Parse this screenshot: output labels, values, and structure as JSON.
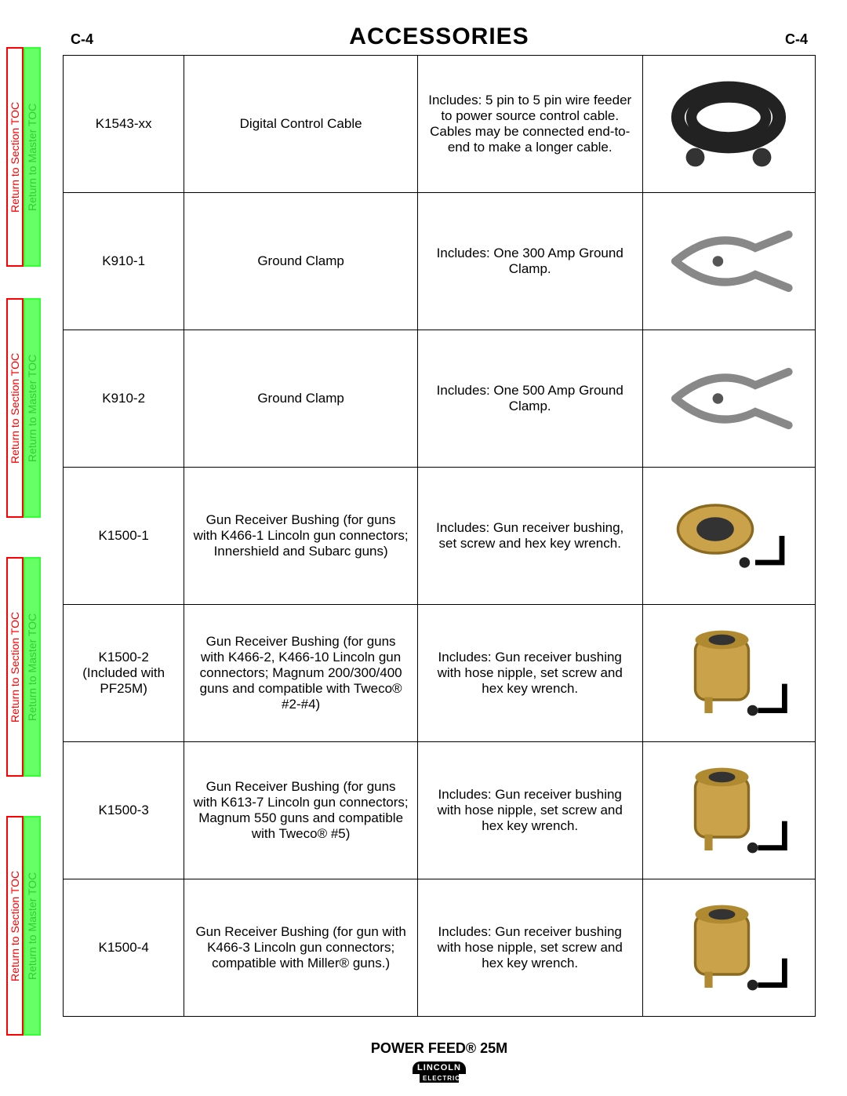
{
  "page_label_left": "C-4",
  "page_title": "ACCESSORIES",
  "page_label_right": "C-4",
  "side_tab_red": "Return to Section TOC",
  "side_tab_green": "Return to Master TOC",
  "footer_product": "POWER FEED® 25M",
  "logo_top": "LINCOLN",
  "logo_bottom": "ELECTRIC",
  "rows": [
    {
      "part": "K1543-xx",
      "name": "Digital Control Cable",
      "desc": "Includes: 5 pin to 5 pin wire feeder to power source control cable.  Cables may be connected end-to-end to make a longer cable.",
      "img": "cable"
    },
    {
      "part": "K910-1",
      "name": "Ground Clamp",
      "desc": "Includes:  One 300 Amp Ground Clamp.",
      "img": "clamp"
    },
    {
      "part": "K910-2",
      "name": "Ground Clamp",
      "desc": "Includes:  One 500 Amp Ground Clamp.",
      "img": "clamp"
    },
    {
      "part": "K1500-1",
      "name": "Gun Receiver Bushing (for guns with K466-1 Lincoln gun connectors; Innershield and Subarc guns)",
      "desc": "Includes:  Gun receiver bushing, set screw and hex key wrench.",
      "img": "bushing1"
    },
    {
      "part": "K1500-2 (Included with PF25M)",
      "name": "Gun Receiver Bushing (for guns with K466-2, K466-10 Lincoln gun connectors; Magnum 200/300/400 guns and compatible with Tweco® #2-#4)",
      "desc": "Includes: Gun receiver bushing with hose nipple, set screw and hex key wrench.",
      "img": "bushing2"
    },
    {
      "part": "K1500-3",
      "name": "Gun Receiver Bushing (for guns with K613-7 Lincoln gun connectors; Magnum 550 guns and compatible with Tweco® #5)",
      "desc": "Includes:  Gun receiver bushing with hose nipple, set screw and hex key wrench.",
      "img": "bushing2"
    },
    {
      "part": "K1500-4",
      "name": "Gun Receiver Bushing (for gun with K466-3 Lincoln gun connectors; compatible with Miller® guns.)",
      "desc": "Includes:  Gun receiver bushing with hose nipple, set screw and hex key wrench.",
      "img": "bushing2"
    }
  ]
}
